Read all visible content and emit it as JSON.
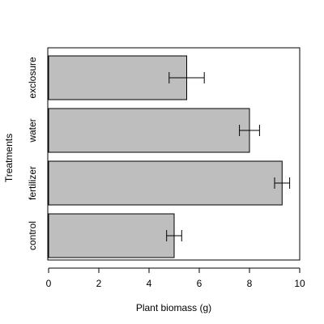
{
  "chart_data": {
    "type": "bar",
    "orientation": "horizontal",
    "categories": [
      "control",
      "fertilizer",
      "water",
      "exclosure"
    ],
    "values": [
      5.0,
      9.3,
      8.0,
      5.5
    ],
    "error_low": [
      4.7,
      9.0,
      7.6,
      4.8
    ],
    "error_high": [
      5.3,
      9.6,
      8.4,
      6.2
    ],
    "title": "",
    "xlabel": "Plant biomass (g)",
    "ylabel": "Treatments",
    "xlim": [
      0,
      10
    ],
    "xticks": [
      0,
      2,
      4,
      6,
      8,
      10
    ],
    "grid": false,
    "bar_color": "#bebebe",
    "edge_color": "#000000"
  }
}
